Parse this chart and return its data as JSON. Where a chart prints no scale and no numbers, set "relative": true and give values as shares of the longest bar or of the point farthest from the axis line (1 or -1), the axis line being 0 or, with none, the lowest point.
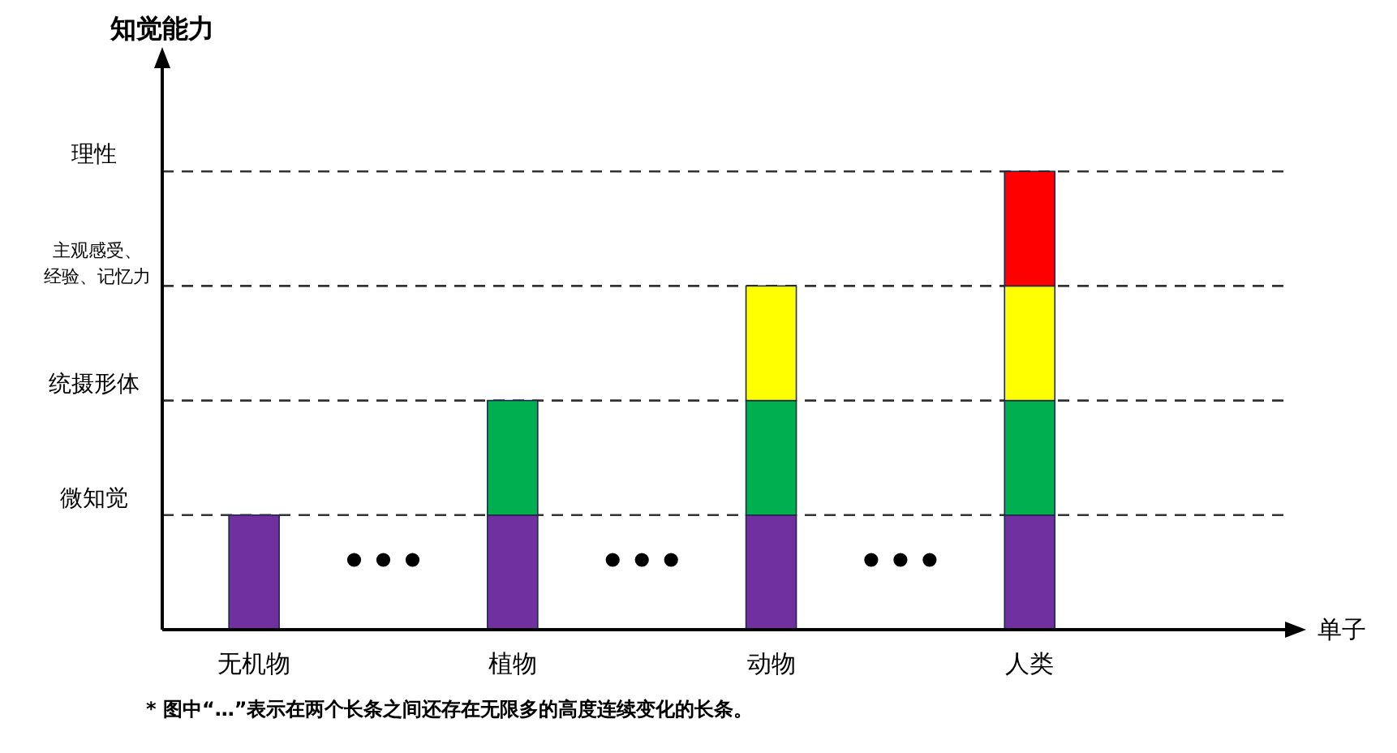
{
  "chart_data": {
    "type": "bar",
    "stacked": true,
    "relative": true,
    "ylabel": "知觉能力",
    "xlabel": "单子",
    "categories": [
      "无机物",
      "植物",
      "动物",
      "人类"
    ],
    "series": [
      {
        "color": "#7030a0",
        "values": [
          0.25,
          0.25,
          0.25,
          0.25
        ]
      },
      {
        "color": "#00b050",
        "values": [
          null,
          0.25,
          0.25,
          0.25
        ]
      },
      {
        "color": "#ffff00",
        "values": [
          null,
          null,
          0.25,
          0.25
        ]
      },
      {
        "color": "#ff0000",
        "values": [
          null,
          null,
          null,
          0.25
        ]
      }
    ],
    "ref_lines": [
      {
        "axis": "y",
        "value": 0.25,
        "label": "微知觉",
        "line_style": "dashed",
        "color": "#333333"
      },
      {
        "axis": "y",
        "value": 0.5,
        "label": "统摄形体",
        "line_style": "dashed",
        "color": "#333333"
      },
      {
        "axis": "y",
        "value": 0.75,
        "label": "主观感受、经验、记忆力",
        "line_style": "dashed",
        "color": "#333333"
      },
      {
        "axis": "y",
        "value": 1,
        "label": "理性",
        "line_style": "dashed",
        "color": "#333333"
      }
    ],
    "annotations": [
      "* 图中“…”表示在两个长条之间还存在无限多的高度连续变化的长条。"
    ]
  }
}
